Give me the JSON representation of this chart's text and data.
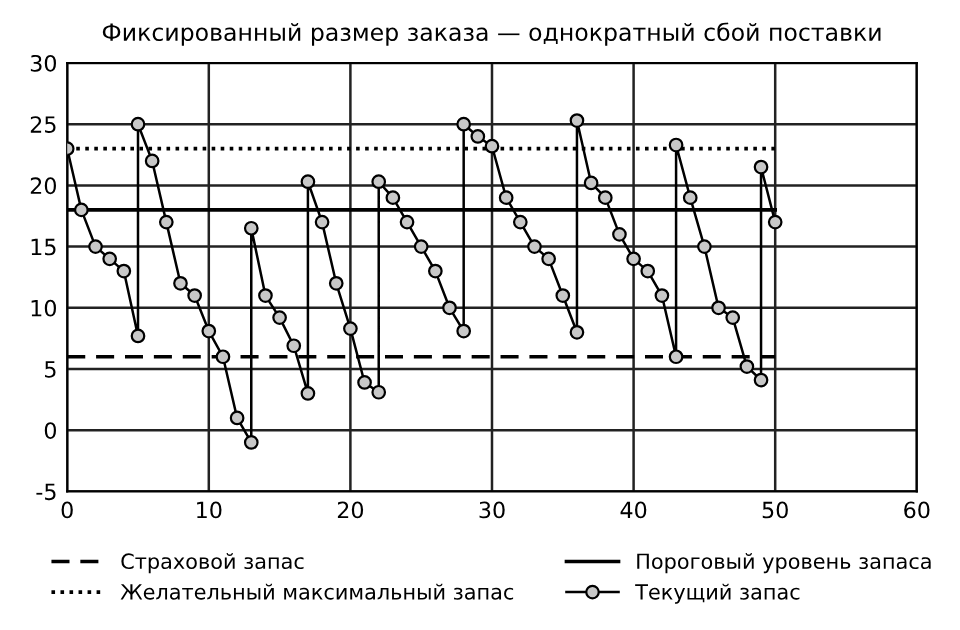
{
  "chart_data": {
    "type": "line",
    "title": "Фиксированный размер заказа — однократный сбой поставки",
    "xlim": [
      0,
      60
    ],
    "xticks": [
      0,
      10,
      20,
      30,
      40,
      50,
      60
    ],
    "ylim": [
      -5,
      30
    ],
    "yticks": [
      -5,
      0,
      5,
      10,
      15,
      20,
      25,
      30
    ],
    "grid": true,
    "legend": "bottom",
    "series": [
      {
        "name": "Страховой запас",
        "color": "#000000",
        "line_style": "dashed",
        "x": [
          0,
          50
        ],
        "values": [
          6,
          6
        ]
      },
      {
        "name": "Желательный максимальный запас",
        "color": "#000000",
        "line_style": "dotted",
        "x": [
          0,
          50
        ],
        "values": [
          23,
          23
        ]
      },
      {
        "name": "Пороговый уровень запаса",
        "color": "#000000",
        "line_style": "solid",
        "x": [
          0,
          50
        ],
        "values": [
          18,
          18
        ]
      },
      {
        "name": "Текущий запас",
        "color": "#000000",
        "line_style": "solid",
        "marker": "circle",
        "x": [
          0,
          1,
          2,
          3,
          4,
          5,
          5,
          6,
          7,
          8,
          9,
          10,
          11,
          12,
          13,
          13,
          14,
          15,
          16,
          17,
          17,
          18,
          19,
          20,
          21,
          22,
          22,
          23,
          24,
          25,
          26,
          27,
          28,
          28,
          29,
          30,
          31,
          32,
          33,
          34,
          35,
          36,
          36,
          37,
          38,
          39,
          40,
          41,
          42,
          43,
          43,
          44,
          45,
          46,
          47,
          48,
          49,
          49,
          50
        ],
        "values": [
          23,
          18,
          15,
          14,
          13,
          7.7,
          25,
          22,
          17,
          12,
          11,
          8.1,
          6,
          1,
          -1,
          16.5,
          11,
          9.2,
          6.9,
          3,
          20.3,
          17,
          12,
          8.3,
          3.9,
          3.1,
          20.3,
          19,
          17,
          15,
          13,
          10,
          8.1,
          25,
          24,
          23.2,
          19,
          17,
          15,
          14,
          11,
          8,
          25.3,
          20.2,
          19,
          16,
          14,
          13,
          11,
          6,
          23.3,
          19,
          15,
          10,
          9.2,
          5.2,
          4.1,
          21.5,
          17
        ]
      }
    ]
  }
}
